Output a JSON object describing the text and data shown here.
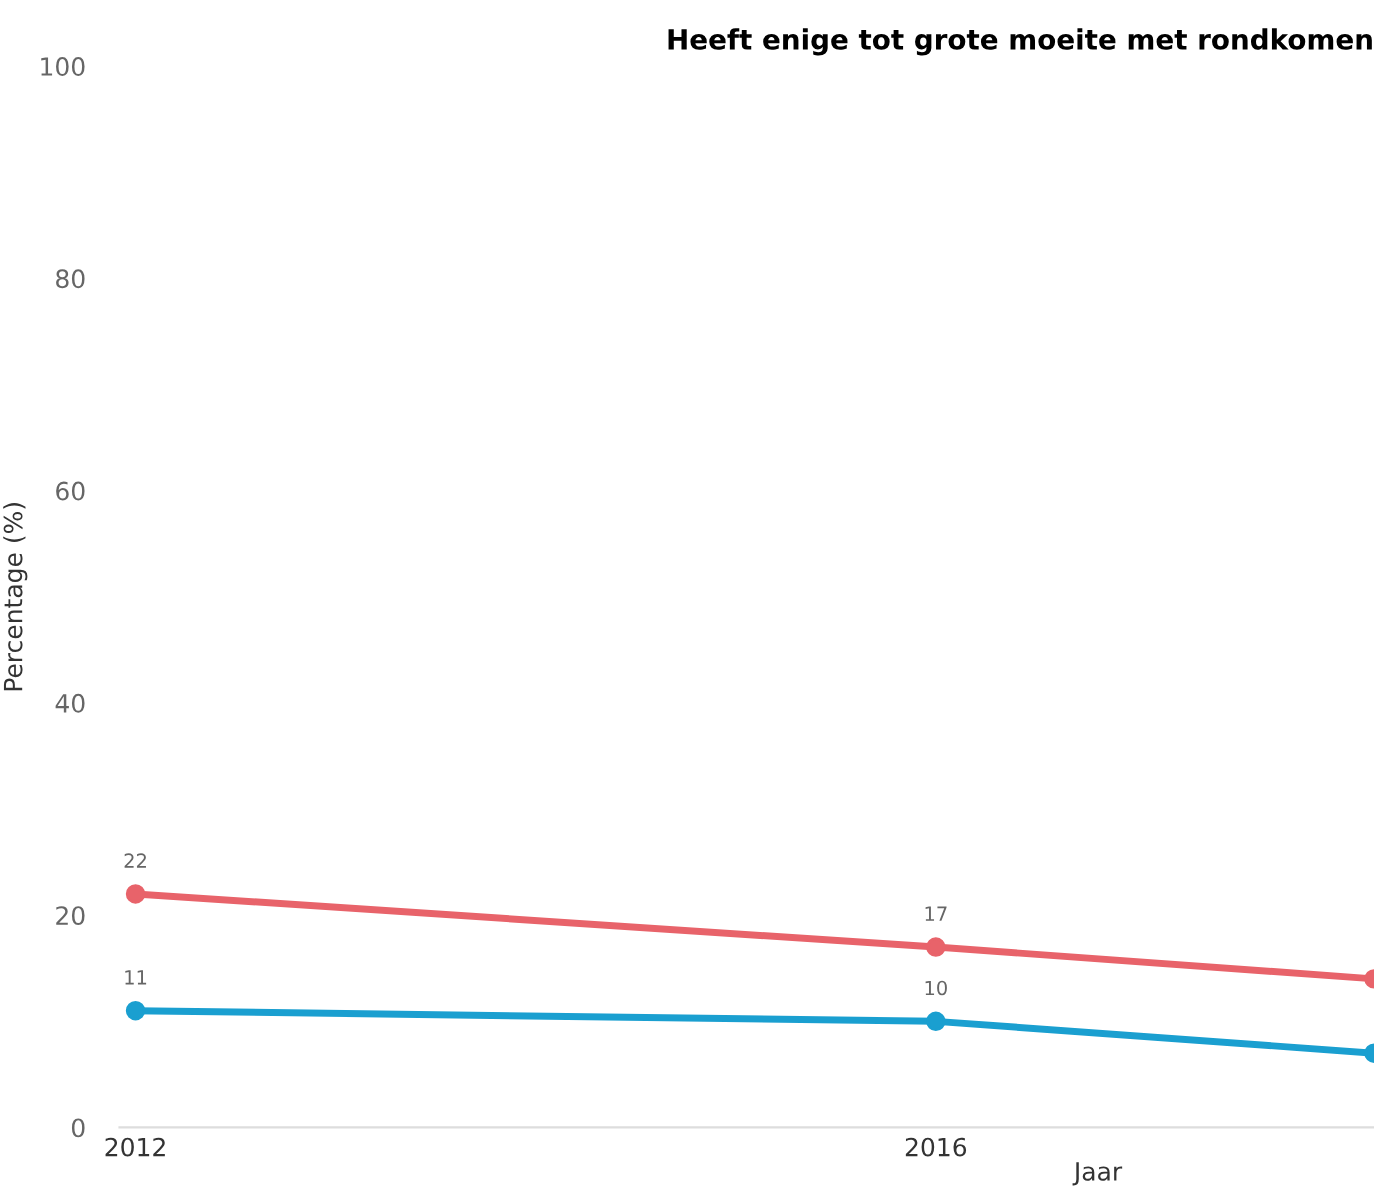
{
  "chart_data": {
    "type": "line",
    "title": "Heeft enige tot grote moeite met rondkomen",
    "xlabel": "Jaar",
    "ylabel": "Percentage (%)",
    "x": [
      2012,
      2016,
      2018.19
    ],
    "series": [
      {
        "color": "#e8636a",
        "values": [
          22,
          17,
          14
        ],
        "value_labels": [
          "22",
          "17",
          null
        ]
      },
      {
        "color": "#1a9fd0",
        "values": [
          11,
          10,
          7
        ],
        "value_labels": [
          "11",
          "10",
          null
        ]
      }
    ],
    "xlim": [
      2011.92,
      2018.19
    ],
    "xticks": [
      2012,
      2016
    ],
    "ylim": [
      0,
      100
    ],
    "yticks": [
      0,
      20,
      40,
      60,
      80,
      100
    ],
    "grid": false,
    "legend": false,
    "marker": "circle",
    "line_style": "solid"
  }
}
